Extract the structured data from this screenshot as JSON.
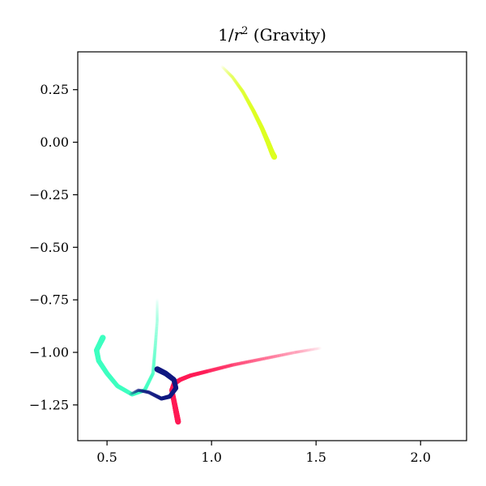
{
  "chart_data": {
    "type": "line",
    "title": "1/r² (Gravity)",
    "title_parts": {
      "prefix": "1/",
      "var": "r",
      "exp": "2",
      "suffix": " (Gravity)"
    },
    "xlabel": "",
    "ylabel": "",
    "xlim": [
      0.36,
      2.22
    ],
    "ylim": [
      -1.42,
      0.43
    ],
    "xticks": [
      {
        "value": 0.5,
        "label": "0.5"
      },
      {
        "value": 1.0,
        "label": "1.0"
      },
      {
        "value": 1.5,
        "label": "1.5"
      },
      {
        "value": 2.0,
        "label": "2.0"
      }
    ],
    "yticks": [
      {
        "value": 0.25,
        "label": "0.25"
      },
      {
        "value": 0.0,
        "label": "0.00"
      },
      {
        "value": -0.25,
        "label": "−0.25"
      },
      {
        "value": -0.5,
        "label": "−0.50"
      },
      {
        "value": -0.75,
        "label": "−0.75"
      },
      {
        "value": -1.0,
        "label": "−1.00"
      },
      {
        "value": -1.25,
        "label": "−1.25"
      }
    ],
    "grid": false,
    "legend": "none",
    "series": [
      {
        "color": "#ddff22",
        "fade": "start",
        "x": [
          1.05,
          1.1,
          1.15,
          1.2,
          1.24,
          1.27,
          1.29,
          1.3
        ],
        "y": [
          0.36,
          0.31,
          0.24,
          0.15,
          0.07,
          0.0,
          -0.05,
          -0.07
        ]
      },
      {
        "color": "#ff1a55",
        "fade": "start",
        "x": [
          1.52,
          1.4,
          1.25,
          1.1,
          0.98,
          0.9,
          0.85,
          0.82,
          0.81,
          0.82,
          0.83,
          0.84
        ],
        "y": [
          -0.98,
          -1.0,
          -1.03,
          -1.06,
          -1.09,
          -1.11,
          -1.13,
          -1.15,
          -1.18,
          -1.23,
          -1.28,
          -1.33
        ]
      },
      {
        "color": "#3dffc0",
        "fade": "start",
        "x": [
          0.74,
          0.74,
          0.73,
          0.72,
          0.68,
          0.62,
          0.55,
          0.5,
          0.46,
          0.45,
          0.47,
          0.48
        ],
        "y": [
          -0.75,
          -0.85,
          -0.98,
          -1.1,
          -1.18,
          -1.2,
          -1.16,
          -1.1,
          -1.04,
          -0.99,
          -0.95,
          -0.93
        ]
      },
      {
        "color": "#101880",
        "fade": "start",
        "x": [
          0.61,
          0.65,
          0.7,
          0.76,
          0.8,
          0.83,
          0.82,
          0.78,
          0.74
        ],
        "y": [
          -1.2,
          -1.18,
          -1.19,
          -1.22,
          -1.21,
          -1.17,
          -1.13,
          -1.1,
          -1.08
        ]
      }
    ]
  }
}
